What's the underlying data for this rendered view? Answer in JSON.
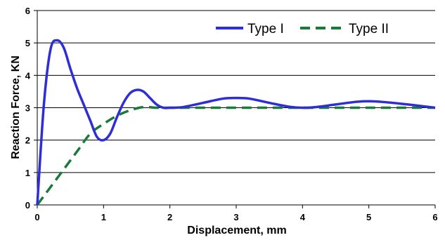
{
  "chart_data": {
    "type": "line",
    "title": "",
    "xlabel": "Displacement, mm",
    "ylabel": "Reaction Force, KN",
    "xlim": [
      0,
      6
    ],
    "ylim": [
      0,
      6
    ],
    "x_ticks": [
      "0",
      "1",
      "2",
      "3",
      "4",
      "5",
      "6"
    ],
    "y_ticks": [
      "0",
      "1",
      "2",
      "3",
      "4",
      "5",
      "6"
    ],
    "grid": "horizontal",
    "legend_position": "top-right",
    "series": [
      {
        "name": "Type I",
        "color": "#2e2ed6",
        "style": "solid",
        "points": [
          [
            0,
            0
          ],
          [
            0.1,
            3.1
          ],
          [
            0.2,
            4.8
          ],
          [
            0.3,
            5.08
          ],
          [
            0.4,
            4.85
          ],
          [
            0.5,
            4.2
          ],
          [
            0.6,
            3.6
          ],
          [
            0.7,
            3.1
          ],
          [
            0.8,
            2.6
          ],
          [
            0.9,
            2.1
          ],
          [
            1.0,
            2.0
          ],
          [
            1.1,
            2.2
          ],
          [
            1.2,
            2.7
          ],
          [
            1.3,
            3.15
          ],
          [
            1.4,
            3.45
          ],
          [
            1.5,
            3.55
          ],
          [
            1.6,
            3.5
          ],
          [
            1.7,
            3.3
          ],
          [
            1.8,
            3.1
          ],
          [
            1.9,
            3.0
          ],
          [
            2.0,
            3.0
          ],
          [
            2.2,
            3.02
          ],
          [
            2.5,
            3.15
          ],
          [
            2.8,
            3.28
          ],
          [
            3.0,
            3.3
          ],
          [
            3.2,
            3.28
          ],
          [
            3.5,
            3.15
          ],
          [
            3.8,
            3.03
          ],
          [
            4.0,
            3.0
          ],
          [
            4.2,
            3.02
          ],
          [
            4.5,
            3.1
          ],
          [
            4.8,
            3.18
          ],
          [
            5.0,
            3.2
          ],
          [
            5.2,
            3.18
          ],
          [
            5.5,
            3.12
          ],
          [
            5.8,
            3.05
          ],
          [
            6.0,
            3.0
          ]
        ]
      },
      {
        "name": "Type II",
        "color": "#1a7a3a",
        "style": "dashed",
        "points": [
          [
            0,
            0
          ],
          [
            0.2,
            0.55
          ],
          [
            0.4,
            1.1
          ],
          [
            0.6,
            1.65
          ],
          [
            0.8,
            2.2
          ],
          [
            1.0,
            2.5
          ],
          [
            1.2,
            2.75
          ],
          [
            1.4,
            2.92
          ],
          [
            1.6,
            3.02
          ],
          [
            1.8,
            3.0
          ],
          [
            2.0,
            3.0
          ],
          [
            3.0,
            3.0
          ],
          [
            4.0,
            3.0
          ],
          [
            5.0,
            3.0
          ],
          [
            6.0,
            3.0
          ]
        ]
      }
    ]
  }
}
